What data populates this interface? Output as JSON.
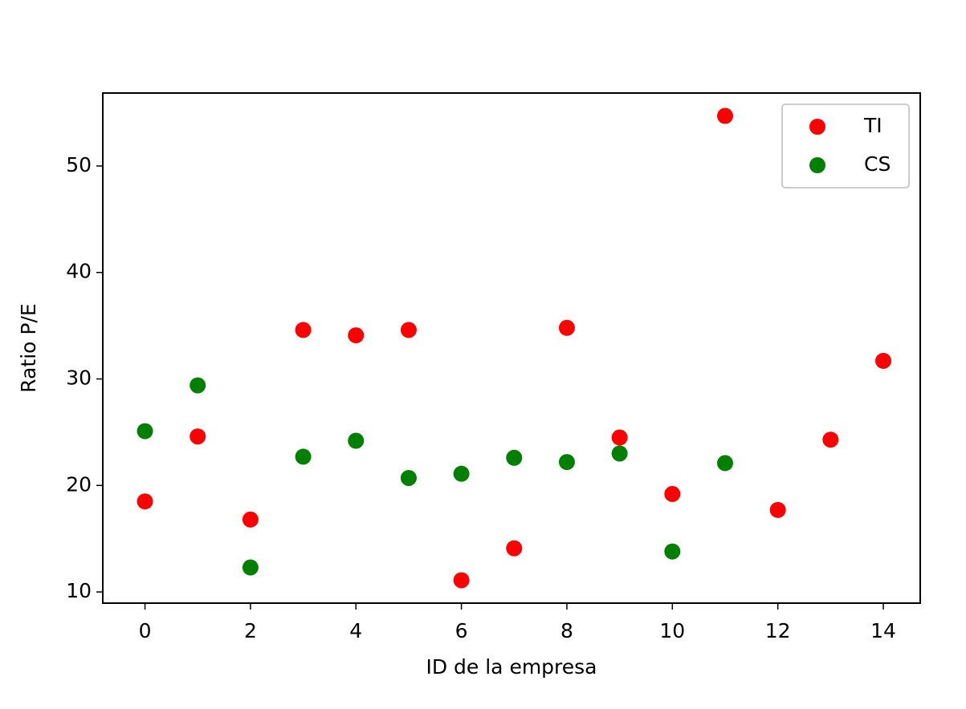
{
  "chart_data": {
    "type": "scatter",
    "xlabel": "ID de la empresa",
    "ylabel": "Ratio P/E",
    "xlim": [
      -0.8,
      14.7
    ],
    "ylim": [
      8.95,
      56.85
    ],
    "xticks": [
      0,
      2,
      4,
      6,
      8,
      10,
      12,
      14
    ],
    "yticks": [
      10,
      20,
      30,
      40,
      50
    ],
    "legend": "upper right",
    "series": [
      {
        "name": "TI",
        "color": "#ff0000",
        "x": [
          0,
          1,
          2,
          3,
          4,
          5,
          6,
          7,
          8,
          9,
          10,
          11,
          12,
          13,
          14
        ],
        "values": [
          18.5,
          24.6,
          16.8,
          34.6,
          34.1,
          34.6,
          11.1,
          14.1,
          34.8,
          24.5,
          19.2,
          54.7,
          17.7,
          24.3,
          31.7
        ]
      },
      {
        "name": "CS",
        "color": "#008000",
        "x": [
          0,
          1,
          2,
          3,
          4,
          5,
          6,
          7,
          8,
          9,
          10,
          11
        ],
        "values": [
          25.1,
          29.4,
          12.3,
          22.7,
          24.2,
          20.7,
          21.1,
          22.6,
          22.2,
          23.0,
          13.8,
          22.1
        ]
      }
    ]
  }
}
